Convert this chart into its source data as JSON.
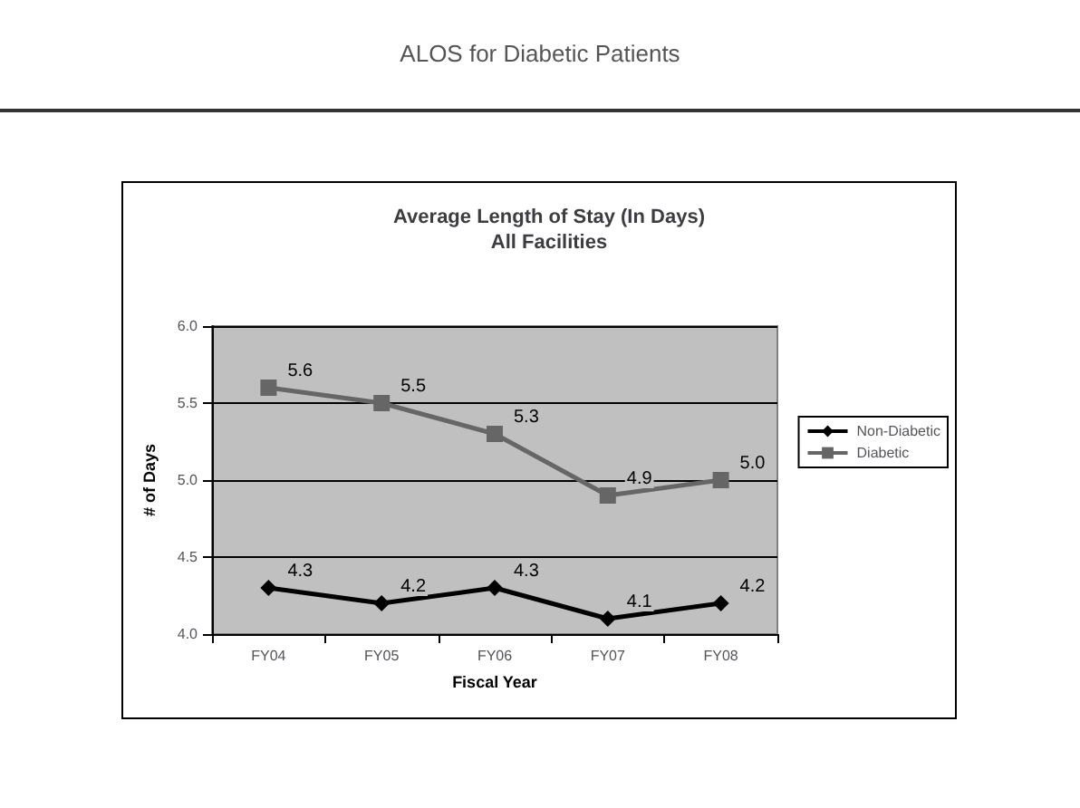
{
  "chart_data": {
    "type": "line",
    "title": "Average Length of Stay (In Days)\nAll Facilities",
    "annotations": [
      "ALOS for Diabetic Patients"
    ],
    "xlabel": "Fiscal Year",
    "ylabel": "# of Days",
    "categories": [
      "FY04",
      "FY05",
      "FY06",
      "FY07",
      "FY08"
    ],
    "series": [
      {
        "name": "Non-Diabetic",
        "color": "#000000",
        "marker": "diamond",
        "values": [
          4.3,
          4.2,
          4.3,
          4.1,
          4.2
        ],
        "value_labels": [
          "4.3",
          "4.2",
          "4.3",
          "4.1",
          "4.2"
        ]
      },
      {
        "name": "Diabetic",
        "color": "#666666",
        "marker": "square",
        "values": [
          5.6,
          5.5,
          5.3,
          4.9,
          5.0
        ],
        "value_labels": [
          "5.6",
          "5.5",
          "5.3",
          "4.9",
          "5.0"
        ]
      }
    ],
    "ylim": [
      4,
      6
    ],
    "yticks": [
      {
        "value": 4,
        "label": "4.0"
      },
      {
        "value": 4.5,
        "label": "4.5"
      },
      {
        "value": 5,
        "label": "5.0"
      },
      {
        "value": 5.5,
        "label": "5.5"
      },
      {
        "value": 6,
        "label": "6.0"
      }
    ],
    "grid": "y",
    "legend": "right",
    "line_style": "solid"
  }
}
